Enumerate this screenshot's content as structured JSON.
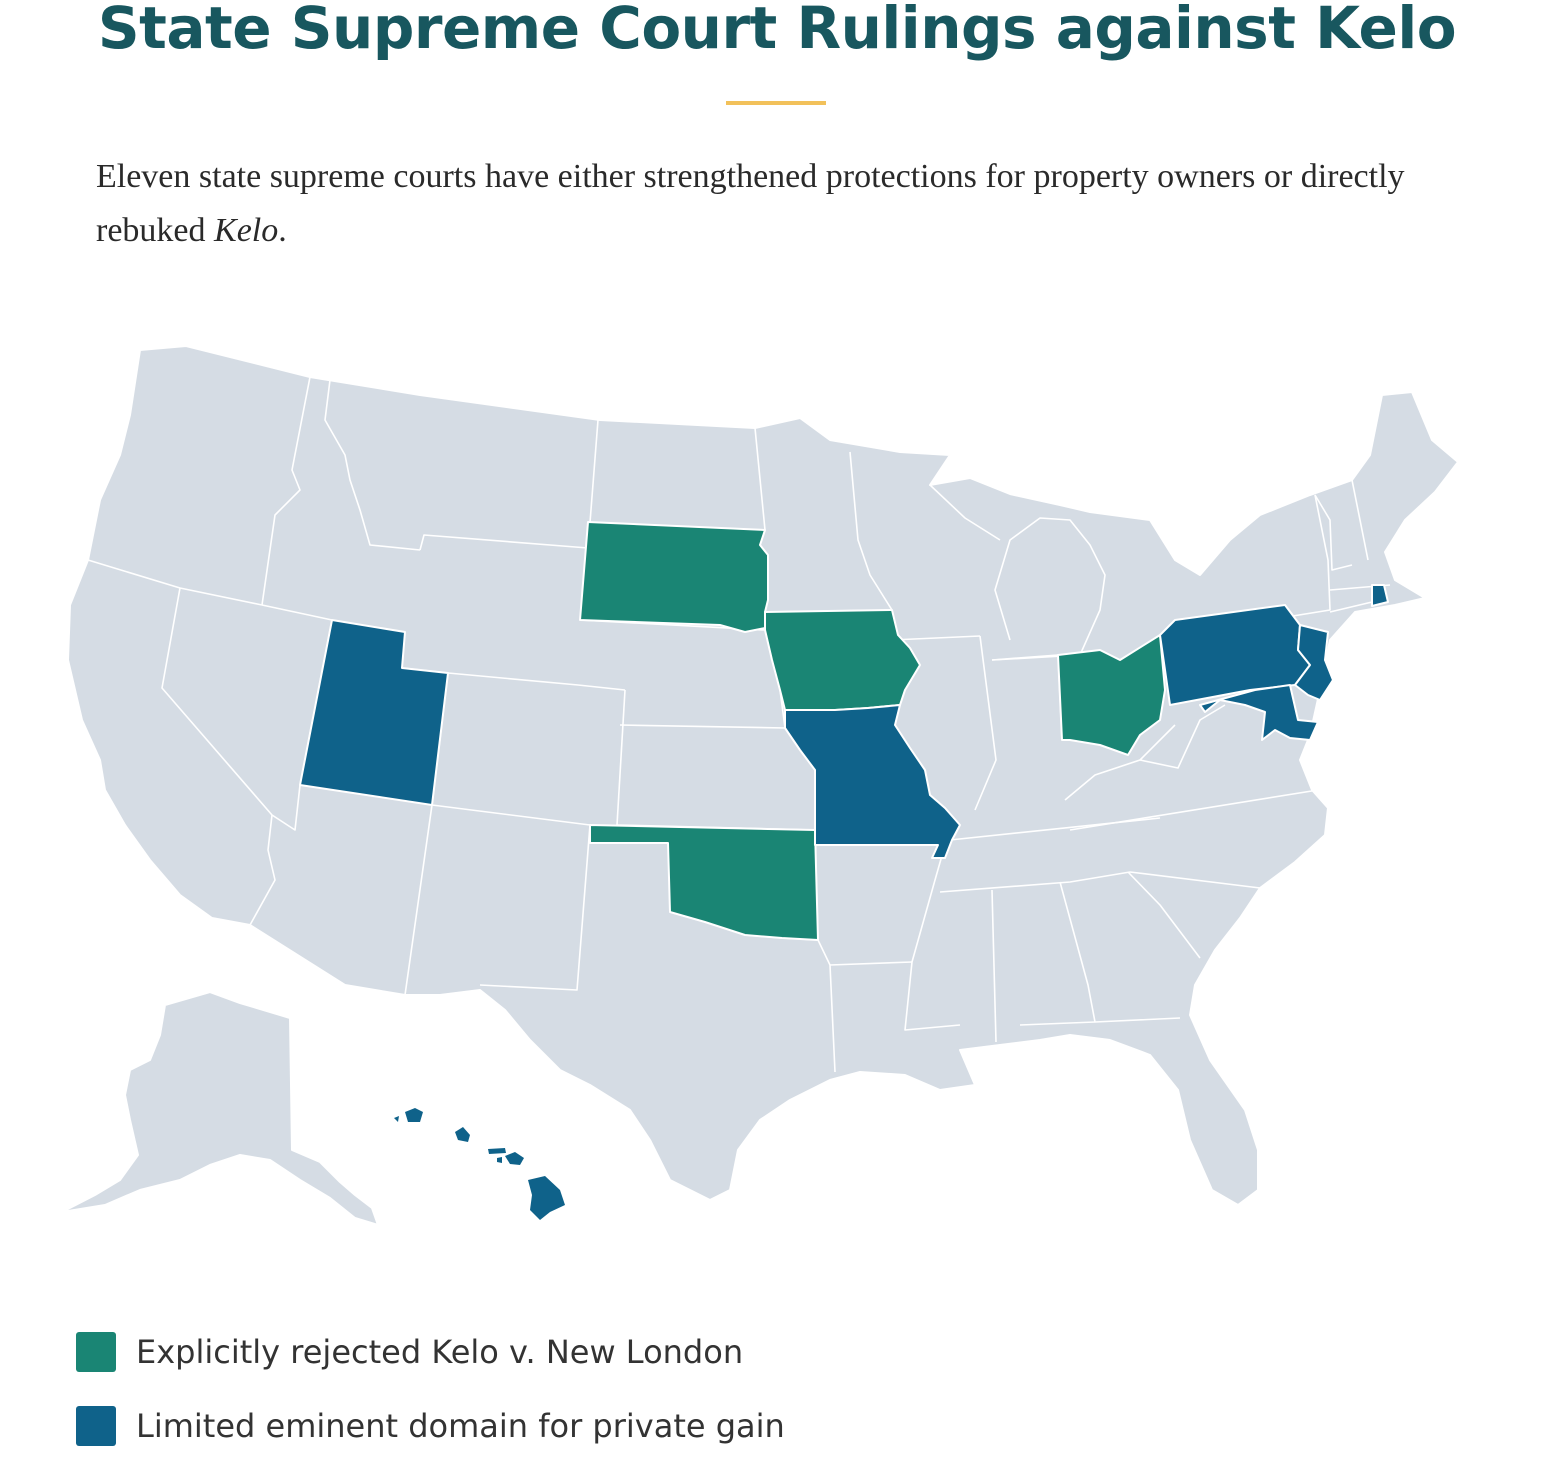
{
  "title": "State Supreme Court Rulings against Kelo",
  "subtitle": {
    "text": "Eleven state supreme courts have either strengthened protections for property owners or directly rebuked ",
    "emphasis": "Kelo",
    "end": "."
  },
  "colors": {
    "title": "#18575f",
    "divider": "#f2c15a",
    "land": "#d5dce4",
    "border": "#ffffff",
    "rejected": "#1a8574",
    "limited": "#0f628a"
  },
  "map": {
    "rejected_states": [
      "South Dakota",
      "Iowa",
      "Ohio",
      "Oklahoma"
    ],
    "limited_states": [
      "Utah",
      "Missouri",
      "Pennsylvania",
      "New Jersey",
      "Maryland",
      "Rhode Island",
      "Hawaii"
    ]
  },
  "legend": [
    {
      "label": "Explicitly rejected Kelo v. New London",
      "color": "#1a8574"
    },
    {
      "label": "Limited eminent domain for private gain",
      "color": "#0f628a"
    }
  ]
}
